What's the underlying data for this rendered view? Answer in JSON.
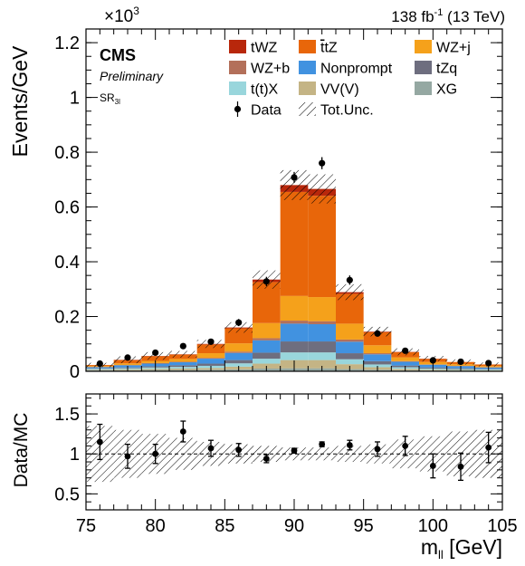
{
  "header": {
    "lumi": "138 fb",
    "lumi_sup": "-1",
    "energy": " (13 TeV)",
    "exponent_base": "×10",
    "exponent_sup": "3"
  },
  "labels": {
    "cms": "CMS",
    "preliminary": "Preliminary",
    "region_main": "SR",
    "region_sub": "3l"
  },
  "colors": {
    "tWZ": "#b8270b",
    "ttZ": "#e8660a",
    "WZ+j": "#f5a11b",
    "WZ+b": "#b3705a",
    "Nonprompt": "#4192e0",
    "tZq": "#6e6e7f",
    "t(t)X": "#99d6dc",
    "VV(V)": "#c4b485",
    "XG": "#95a8a2",
    "data": "#000000"
  },
  "legend": {
    "placement": "top-right",
    "entries": [
      {
        "key": "tWZ",
        "label": "tWZ",
        "kind": "fill"
      },
      {
        "key": "ttZ",
        "label": "ttZ",
        "bar": "t",
        "kind": "fill"
      },
      {
        "key": "WZ+j",
        "label": "WZ+j",
        "kind": "fill"
      },
      {
        "key": "WZ+b",
        "label": "WZ+b",
        "kind": "fill"
      },
      {
        "key": "Nonprompt",
        "label": "Nonprompt",
        "kind": "fill"
      },
      {
        "key": "tZq",
        "label": "tZq",
        "kind": "fill"
      },
      {
        "key": "t(t)X",
        "label": "t(t)X",
        "kind": "fill"
      },
      {
        "key": "VV(V)",
        "label": "VV(V)",
        "kind": "fill"
      },
      {
        "key": "XG",
        "label": "XG",
        "kind": "fill"
      },
      {
        "key": "data",
        "label": "Data",
        "kind": "marker"
      },
      {
        "key": "unc",
        "label": "Tot.Unc.",
        "kind": "hatch"
      }
    ]
  },
  "chart_data": [
    {
      "type": "bar",
      "stacked": true,
      "xlabel": "m",
      "xlabel_sub": "ll",
      "xlabel_unit": " [GeV]",
      "ylabel": "Events/GeV",
      "y_multiplier": 1000,
      "xlim": [
        75,
        105
      ],
      "ylim": [
        0,
        1.25
      ],
      "xticks": [
        75,
        80,
        85,
        90,
        95,
        100,
        105
      ],
      "xtick_labels": [
        "75",
        "80",
        "85",
        "90",
        "95",
        "100",
        "105"
      ],
      "yticks": [
        0,
        0.2,
        0.4,
        0.6,
        0.8,
        1,
        1.2
      ],
      "ytick_labels": [
        "0",
        "0.2",
        "0.4",
        "0.6",
        "0.8",
        "1",
        "1.2"
      ],
      "bin_edges": [
        75,
        77,
        79,
        81,
        83,
        85,
        87,
        89,
        91,
        93,
        95,
        97,
        99,
        101,
        103,
        105
      ],
      "series": [
        {
          "name": "XG",
          "values": [
            0.004,
            0.004,
            0.005,
            0.005,
            0.006,
            0.007,
            0.01,
            0.011,
            0.011,
            0.008,
            0.006,
            0.004,
            0.003,
            0.003,
            0.002
          ]
        },
        {
          "name": "VV(V)",
          "values": [
            0.002,
            0.003,
            0.004,
            0.005,
            0.006,
            0.01,
            0.018,
            0.03,
            0.03,
            0.018,
            0.009,
            0.005,
            0.003,
            0.002,
            0.002
          ]
        },
        {
          "name": "t(t)X",
          "values": [
            0.003,
            0.004,
            0.005,
            0.006,
            0.008,
            0.012,
            0.018,
            0.028,
            0.028,
            0.018,
            0.01,
            0.006,
            0.004,
            0.003,
            0.003
          ]
        },
        {
          "name": "tZq",
          "values": [
            0.002,
            0.003,
            0.004,
            0.006,
            0.008,
            0.012,
            0.022,
            0.04,
            0.04,
            0.022,
            0.012,
            0.006,
            0.004,
            0.003,
            0.002
          ]
        },
        {
          "name": "Nonprompt",
          "values": [
            0.004,
            0.008,
            0.01,
            0.011,
            0.018,
            0.026,
            0.045,
            0.065,
            0.063,
            0.042,
            0.025,
            0.014,
            0.01,
            0.008,
            0.005
          ]
        },
        {
          "name": "WZ+b",
          "values": [
            0.001,
            0.001,
            0.002,
            0.002,
            0.003,
            0.005,
            0.008,
            0.011,
            0.011,
            0.008,
            0.004,
            0.002,
            0.001,
            0.001,
            0.001
          ]
        },
        {
          "name": "WZ+j",
          "values": [
            0.003,
            0.006,
            0.008,
            0.01,
            0.017,
            0.03,
            0.055,
            0.09,
            0.088,
            0.058,
            0.029,
            0.014,
            0.009,
            0.006,
            0.004
          ]
        },
        {
          "name": "ttZ",
          "values": [
            0.004,
            0.012,
            0.017,
            0.016,
            0.032,
            0.055,
            0.15,
            0.38,
            0.37,
            0.109,
            0.048,
            0.019,
            0.011,
            0.008,
            0.006
          ]
        },
        {
          "name": "tWZ",
          "values": [
            0.0,
            0.001,
            0.001,
            0.001,
            0.002,
            0.003,
            0.009,
            0.025,
            0.025,
            0.006,
            0.002,
            0.001,
            0.001,
            0.0,
            0.0
          ]
        }
      ],
      "uncertainty_rel": [
        0.35,
        0.3,
        0.25,
        0.2,
        0.15,
        0.12,
        0.1,
        0.08,
        0.08,
        0.1,
        0.12,
        0.18,
        0.22,
        0.28,
        0.3
      ],
      "data_points": {
        "x": [
          76,
          78,
          80,
          82,
          84,
          86,
          88,
          90,
          92,
          94,
          96,
          98,
          100,
          102,
          104
        ],
        "y": [
          0.028,
          0.05,
          0.068,
          0.092,
          0.108,
          0.178,
          0.328,
          0.708,
          0.76,
          0.333,
          0.138,
          0.075,
          0.04,
          0.035,
          0.03
        ],
        "err": [
          0.005,
          0.007,
          0.008,
          0.009,
          0.01,
          0.013,
          0.017,
          0.02,
          0.022,
          0.017,
          0.011,
          0.008,
          0.006,
          0.006,
          0.005
        ]
      }
    },
    {
      "type": "scatter",
      "ylabel": "Data/MC",
      "xlim": [
        75,
        105
      ],
      "ylim": [
        0.3,
        1.75
      ],
      "yticks": [
        0.5,
        1,
        1.5
      ],
      "ytick_labels": [
        "0.5",
        "1",
        "1.5"
      ],
      "reference_line": 1,
      "x": [
        76,
        78,
        80,
        82,
        84,
        86,
        88,
        90,
        92,
        94,
        96,
        98,
        100,
        102,
        104
      ],
      "y": [
        1.15,
        0.97,
        1.0,
        1.28,
        1.07,
        1.05,
        0.94,
        1.04,
        1.12,
        1.11,
        1.06,
        1.1,
        0.85,
        0.84,
        1.08
      ],
      "err": [
        0.22,
        0.15,
        0.12,
        0.13,
        0.1,
        0.08,
        0.05,
        0.03,
        0.03,
        0.06,
        0.09,
        0.12,
        0.15,
        0.17,
        0.19
      ]
    }
  ]
}
